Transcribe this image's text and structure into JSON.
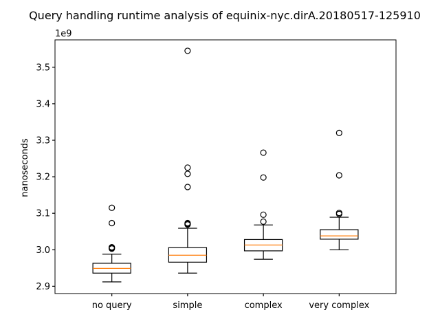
{
  "chart_data": {
    "type": "box",
    "title": "Query handling runtime analysis of equinix-nyc.dirA.20180517-125910",
    "xlabel": "",
    "ylabel": "nanoseconds",
    "y_offset_label": "1e9",
    "ylim": [
      2.88,
      3.575
    ],
    "yticks": [
      2.9,
      3.0,
      3.1,
      3.2,
      3.3,
      3.4,
      3.5
    ],
    "ytick_labels": [
      "2.9",
      "3.0",
      "3.1",
      "3.2",
      "3.3",
      "3.4",
      "3.5"
    ],
    "categories": [
      "no query",
      "simple",
      "complex",
      "very complex"
    ],
    "boxes": [
      {
        "whisker_low": 2.912,
        "q1": 2.936,
        "median": 2.949,
        "q3": 2.963,
        "whisker_high": 2.988,
        "outliers": [
          3.003,
          3.005,
          3.007,
          3.073,
          3.115
        ]
      },
      {
        "whisker_low": 2.936,
        "q1": 2.966,
        "median": 2.985,
        "q3": 3.006,
        "whisker_high": 3.059,
        "outliers": [
          3.069,
          3.071,
          3.073,
          3.172,
          3.208,
          3.225,
          3.545
        ]
      },
      {
        "whisker_low": 2.974,
        "q1": 2.997,
        "median": 3.013,
        "q3": 3.028,
        "whisker_high": 3.068,
        "outliers": [
          3.077,
          3.096,
          3.198,
          3.266
        ]
      },
      {
        "whisker_low": 3.0,
        "q1": 3.029,
        "median": 3.038,
        "q3": 3.055,
        "whisker_high": 3.089,
        "outliers": [
          3.098,
          3.101,
          3.204,
          3.32
        ]
      }
    ],
    "colors": {
      "box": "#000000",
      "median": "#ff7f0e",
      "outlier": "#000000"
    },
    "grid": false,
    "legend": "none"
  }
}
